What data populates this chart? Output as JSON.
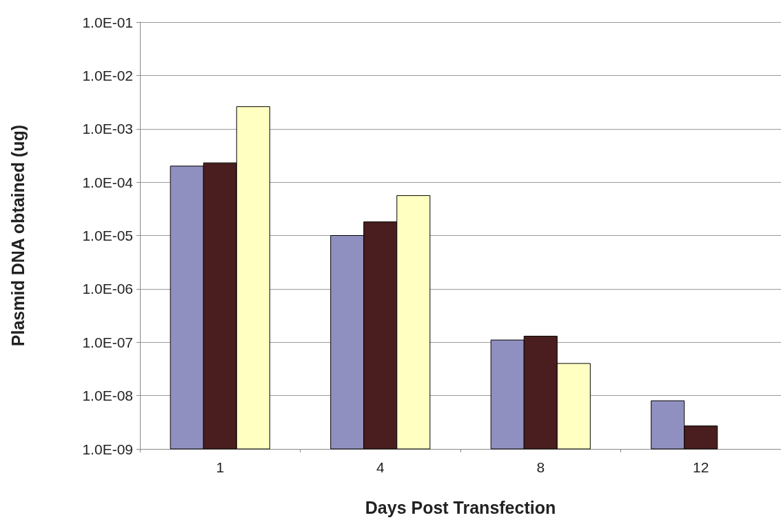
{
  "chart_data": {
    "type": "bar",
    "xlabel": "Days Post Transfection",
    "ylabel": "Plasmid DNA obtained (ug)",
    "categories": [
      "1",
      "4",
      "8",
      "12"
    ],
    "series": [
      {
        "color": "#9090c0",
        "values": [
          0.0002,
          1e-05,
          1.1e-07,
          8e-09
        ]
      },
      {
        "color": "#4a1e1e",
        "values": [
          0.00023,
          1.8e-05,
          1.3e-07,
          2.7e-09
        ]
      },
      {
        "color": "#ffffc2",
        "values": [
          0.0026,
          5.6e-05,
          4e-08,
          null
        ]
      }
    ],
    "log": "y",
    "ylim": [
      1e-09,
      0.1
    ],
    "yticks": [
      {
        "value": 1e-09,
        "label": "1.0E-09"
      },
      {
        "value": 1e-08,
        "label": "1.0E-08"
      },
      {
        "value": 1e-07,
        "label": "1.0E-07"
      },
      {
        "value": 1e-06,
        "label": "1.0E-06"
      },
      {
        "value": 1e-05,
        "label": "1.0E-05"
      },
      {
        "value": 0.0001,
        "label": "1.0E-04"
      },
      {
        "value": 0.001,
        "label": "1.0E-03"
      },
      {
        "value": 0.01,
        "label": "1.0E-02"
      },
      {
        "value": 0.1,
        "label": "1.0E-01"
      }
    ],
    "grid": "y"
  }
}
